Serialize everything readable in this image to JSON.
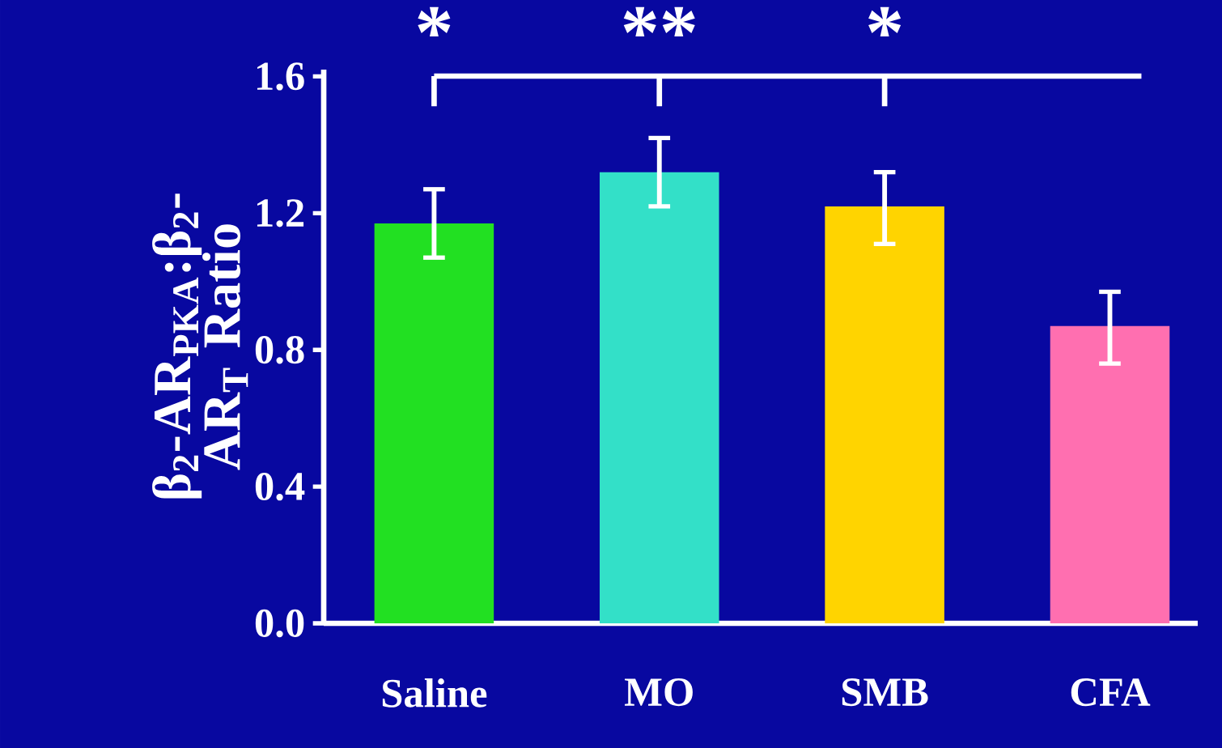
{
  "chart_data": {
    "type": "bar",
    "ylabel": "β$_{2}$-AR$_{PKA}$:β$_{2}$-AR$_{T}$ Ratio",
    "categories": [
      "Saline",
      "MO",
      "SMB",
      "CFA"
    ],
    "values": [
      1.17,
      1.32,
      1.22,
      0.87
    ],
    "colors": [
      "#22e022",
      "#33e0c8",
      "#ffd400",
      "#ff6fb0"
    ],
    "errors": [
      [
        1.07,
        1.27
      ],
      [
        1.22,
        1.42
      ],
      [
        1.11,
        1.32
      ],
      [
        0.76,
        0.97
      ]
    ],
    "ylim": [
      0,
      1.62
    ],
    "yticks": [
      {
        "value": 0,
        "label": "0.0"
      },
      {
        "value": 0.4,
        "label": "0.4"
      },
      {
        "value": 0.8,
        "label": "0.8"
      },
      {
        "value": 1.2,
        "label": "1.2"
      },
      {
        "value": 1.6,
        "label": "1.6"
      }
    ],
    "annotations": [
      "*",
      "**",
      "*"
    ]
  }
}
